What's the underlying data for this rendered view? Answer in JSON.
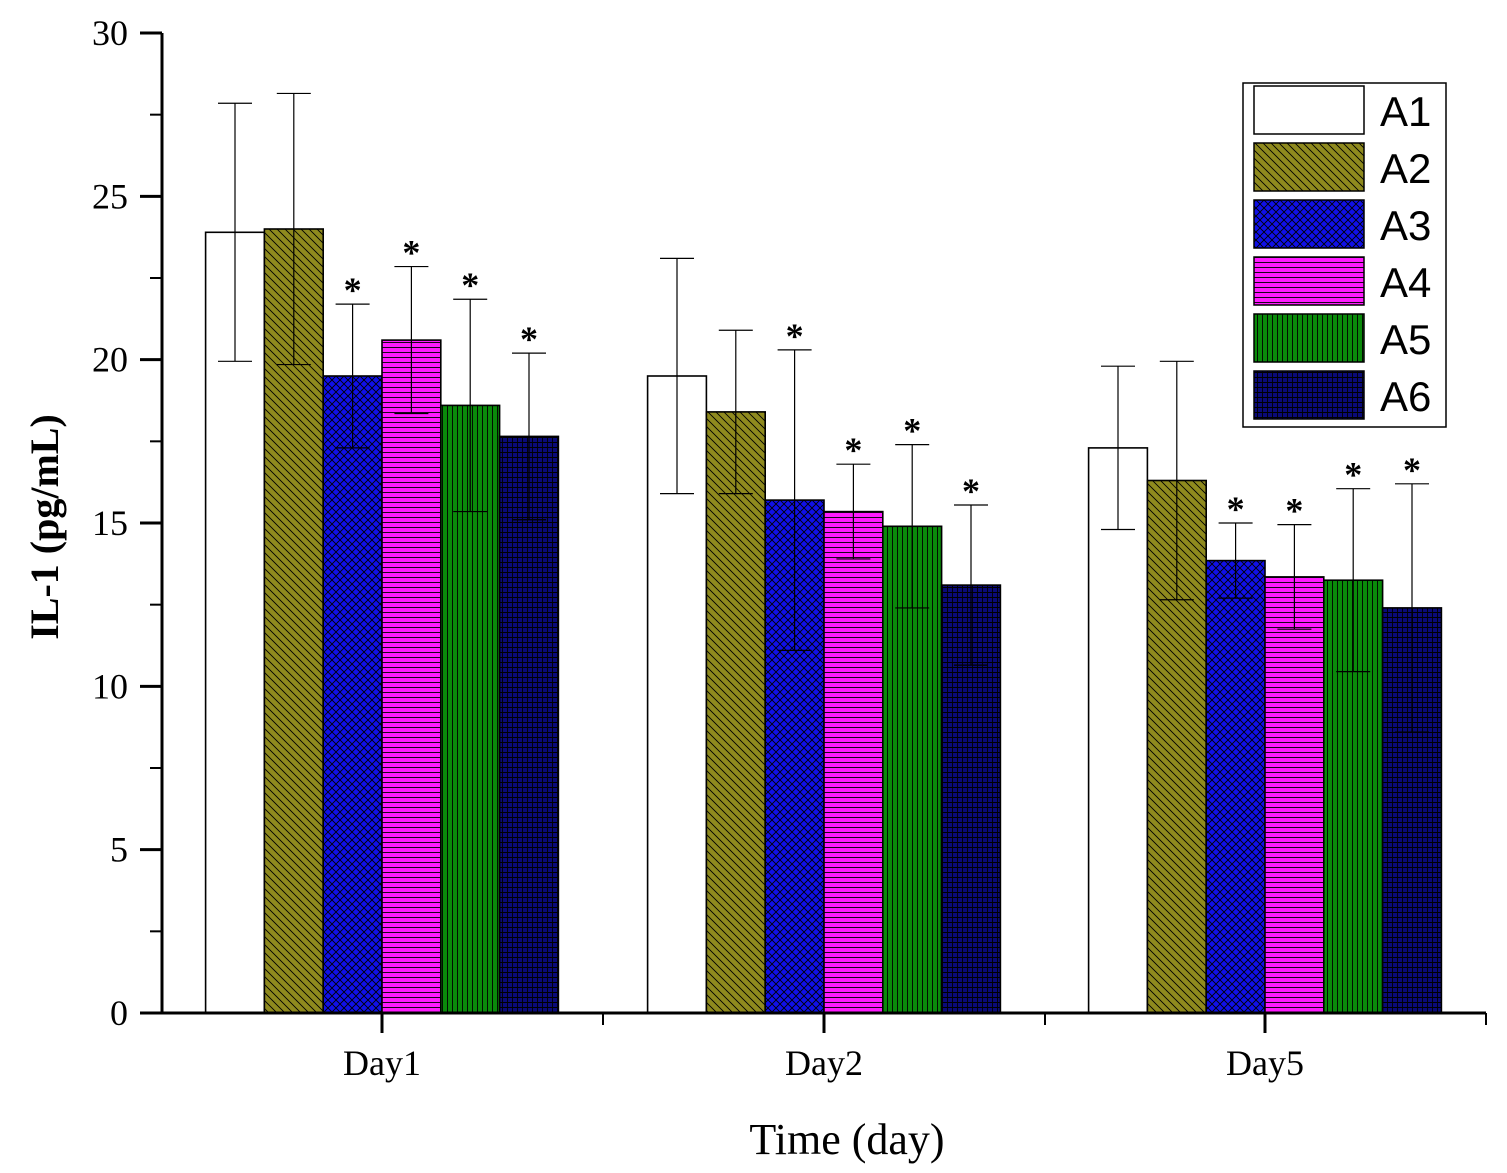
{
  "chart_data": {
    "type": "bar",
    "title": "",
    "xlabel": "Time (day)",
    "ylabel": "IL-1 (pg/mL)",
    "ylim": [
      0,
      30
    ],
    "yticks": [
      0,
      5,
      10,
      15,
      20,
      25,
      30
    ],
    "grid": false,
    "legend_position": "top-right",
    "categories": [
      "Day1",
      "Day2",
      "Day5"
    ],
    "significance_marker": "*",
    "series": [
      {
        "name": "A1",
        "color": "#ffffff",
        "pattern": "none",
        "values": [
          23.9,
          19.5,
          17.3
        ],
        "errors": [
          3.95,
          3.6,
          2.5
        ],
        "significant": [
          false,
          false,
          false
        ]
      },
      {
        "name": "A2",
        "color": "#8f8a1e",
        "pattern": "diagonal",
        "values": [
          24.0,
          18.4,
          16.3
        ],
        "errors": [
          4.15,
          2.5,
          3.65
        ],
        "significant": [
          false,
          false,
          false
        ]
      },
      {
        "name": "A3",
        "color": "#1010e8",
        "pattern": "crosshatch",
        "values": [
          19.5,
          15.7,
          13.85
        ],
        "errors": [
          2.2,
          4.6,
          1.15
        ],
        "significant": [
          true,
          true,
          true
        ]
      },
      {
        "name": "A4",
        "color": "#ff1aff",
        "pattern": "horizontal",
        "values": [
          20.6,
          15.35,
          13.35
        ],
        "errors": [
          2.25,
          1.45,
          1.6
        ],
        "significant": [
          true,
          true,
          true
        ]
      },
      {
        "name": "A5",
        "color": "#0a8a0a",
        "pattern": "vertical",
        "values": [
          18.6,
          14.9,
          13.25
        ],
        "errors": [
          3.25,
          2.5,
          2.8
        ],
        "significant": [
          true,
          true,
          true
        ]
      },
      {
        "name": "A6",
        "color": "#0a0a78",
        "pattern": "grid",
        "values": [
          17.65,
          13.1,
          12.4
        ],
        "errors": [
          2.55,
          2.45,
          3.8
        ],
        "significant": [
          true,
          true,
          true
        ]
      }
    ]
  }
}
